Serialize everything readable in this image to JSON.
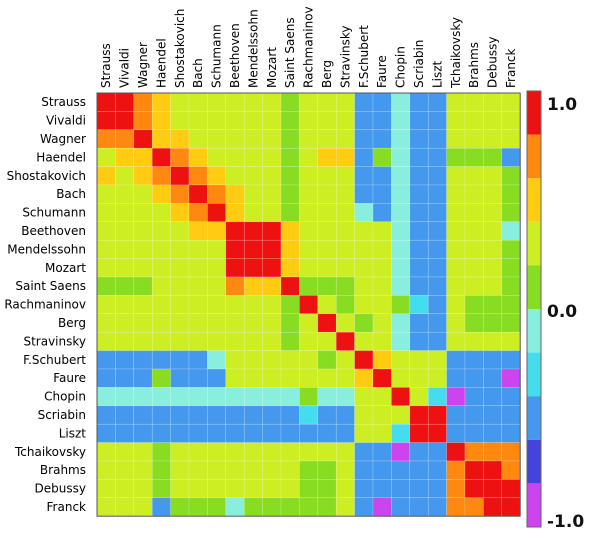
{
  "chart_data": {
    "type": "heatmap",
    "title": "",
    "xlabel": "",
    "ylabel": "",
    "composers": [
      "Strauss",
      "Vivaldi",
      "Wagner",
      "Haendel",
      "Shostakovich",
      "Bach",
      "Schumann",
      "Beethoven",
      "Mendelssohn",
      "Mozart",
      "Saint Saens",
      "Rachmaninov",
      "Berg",
      "Stravinsky",
      "F.Schubert",
      "Faure",
      "Chopin",
      "Scriabin",
      "Liszt",
      "Tchaikovsky",
      "Brahms",
      "Debussy",
      "Franck"
    ],
    "color_scale": {
      "min": -1.0,
      "max": 1.0,
      "labels": [
        "1.0",
        "0.0",
        "-1.0"
      ],
      "colors": [
        "#cc44ee",
        "#4444dd",
        "#4499ee",
        "#44ddee",
        "#88eedd",
        "#88dd22",
        "#ccee22",
        "#ffcc11",
        "#ff8811",
        "#ee1111"
      ]
    },
    "values": [
      [
        1.0,
        0.9,
        0.6,
        0.4,
        0.3,
        0.3,
        0.3,
        0.3,
        0.3,
        0.3,
        0.1,
        0.3,
        0.3,
        0.3,
        -0.5,
        -0.5,
        -0.1,
        -0.5,
        -0.5,
        0.2,
        0.2,
        0.2,
        0.2
      ],
      [
        0.9,
        1.0,
        0.7,
        0.4,
        0.3,
        0.3,
        0.3,
        0.3,
        0.3,
        0.3,
        0.1,
        0.3,
        0.3,
        0.3,
        -0.5,
        -0.5,
        -0.1,
        -0.5,
        -0.5,
        0.2,
        0.2,
        0.2,
        0.2
      ],
      [
        0.6,
        0.7,
        1.0,
        0.5,
        0.4,
        0.3,
        0.3,
        0.3,
        0.3,
        0.3,
        0.1,
        0.3,
        0.3,
        0.3,
        -0.5,
        -0.5,
        -0.1,
        -0.5,
        -0.5,
        0.2,
        0.2,
        0.2,
        0.2
      ],
      [
        0.3,
        0.4,
        0.5,
        1.0,
        0.6,
        0.4,
        0.3,
        0.3,
        0.3,
        0.3,
        0.1,
        0.2,
        0.4,
        0.4,
        -0.5,
        0.1,
        -0.2,
        -0.5,
        -0.5,
        0.1,
        0.0,
        0.0,
        -0.5
      ],
      [
        0.4,
        0.3,
        0.4,
        0.6,
        1.0,
        0.6,
        0.4,
        0.3,
        0.3,
        0.3,
        0.1,
        0.3,
        0.3,
        0.3,
        -0.5,
        -0.5,
        -0.1,
        -0.5,
        -0.5,
        0.2,
        0.2,
        0.2,
        0.0
      ],
      [
        0.3,
        0.3,
        0.3,
        0.4,
        0.6,
        1.0,
        0.7,
        0.4,
        0.3,
        0.3,
        0.1,
        0.3,
        0.3,
        0.3,
        -0.5,
        -0.5,
        -0.1,
        -0.6,
        -0.5,
        0.2,
        0.2,
        0.2,
        0.0
      ],
      [
        0.3,
        0.3,
        0.3,
        0.3,
        0.4,
        0.7,
        1.0,
        0.4,
        0.3,
        0.3,
        0.1,
        0.3,
        0.3,
        0.3,
        -0.1,
        -0.5,
        -0.1,
        -0.6,
        -0.5,
        0.2,
        0.2,
        0.2,
        0.0
      ],
      [
        0.3,
        0.3,
        0.3,
        0.3,
        0.3,
        0.4,
        0.4,
        1.0,
        0.9,
        0.8,
        0.5,
        0.3,
        0.3,
        0.3,
        0.3,
        0.3,
        -0.1,
        -0.5,
        -0.5,
        0.2,
        0.2,
        0.2,
        -0.1
      ],
      [
        0.3,
        0.3,
        0.3,
        0.3,
        0.3,
        0.3,
        0.3,
        0.9,
        1.0,
        0.8,
        0.4,
        0.3,
        0.3,
        0.3,
        0.3,
        0.3,
        -0.1,
        -0.5,
        -0.5,
        0.2,
        0.2,
        0.2,
        0.0
      ],
      [
        0.3,
        0.3,
        0.3,
        0.3,
        0.3,
        0.3,
        0.3,
        0.8,
        0.8,
        1.0,
        0.5,
        0.3,
        0.3,
        0.3,
        0.3,
        0.3,
        -0.1,
        -0.6,
        -0.5,
        0.2,
        0.2,
        0.2,
        0.0
      ],
      [
        0.1,
        0.1,
        0.1,
        0.3,
        0.3,
        0.3,
        0.3,
        0.7,
        0.5,
        0.5,
        1.0,
        0.1,
        0.1,
        0.1,
        0.3,
        0.3,
        -0.1,
        -0.5,
        -0.5,
        0.2,
        0.2,
        0.2,
        0.0
      ],
      [
        0.3,
        0.3,
        0.3,
        0.3,
        0.3,
        0.3,
        0.3,
        0.3,
        0.3,
        0.3,
        0.1,
        1.0,
        0.3,
        0.1,
        0.3,
        0.3,
        0.0,
        -0.3,
        -0.5,
        0.2,
        0.0,
        0.0,
        0.0
      ],
      [
        0.3,
        0.3,
        0.3,
        0.3,
        0.3,
        0.3,
        0.3,
        0.3,
        0.3,
        0.3,
        0.1,
        0.3,
        1.0,
        0.3,
        0.1,
        0.3,
        -0.1,
        -0.5,
        -0.5,
        0.2,
        0.0,
        0.0,
        0.0
      ],
      [
        0.3,
        0.3,
        0.3,
        0.3,
        0.3,
        0.3,
        0.3,
        0.3,
        0.3,
        0.3,
        0.1,
        0.3,
        0.3,
        1.0,
        0.3,
        0.3,
        -0.1,
        -0.5,
        -0.5,
        0.2,
        0.2,
        0.2,
        0.2
      ],
      [
        -0.5,
        -0.5,
        -0.5,
        -0.5,
        -0.5,
        -0.5,
        -0.1,
        0.3,
        0.3,
        0.3,
        0.3,
        0.3,
        0.1,
        0.3,
        1.0,
        0.4,
        0.2,
        0.3,
        0.3,
        -0.5,
        -0.5,
        -0.5,
        -0.5
      ],
      [
        -0.5,
        -0.5,
        -0.5,
        0.1,
        -0.5,
        -0.5,
        -0.5,
        0.3,
        0.3,
        0.3,
        0.3,
        0.3,
        0.3,
        0.3,
        0.4,
        1.0,
        0.3,
        0.2,
        0.2,
        -0.5,
        -0.6,
        -0.6,
        -0.8
      ],
      [
        -0.1,
        -0.1,
        -0.1,
        -0.2,
        -0.1,
        -0.1,
        -0.1,
        -0.1,
        -0.1,
        -0.1,
        -0.1,
        0.0,
        -0.1,
        -0.1,
        0.2,
        0.3,
        1.0,
        0.2,
        -0.3,
        -0.8,
        -0.5,
        -0.5,
        -0.5
      ],
      [
        -0.5,
        -0.5,
        -0.5,
        -0.5,
        -0.5,
        -0.6,
        -0.6,
        -0.5,
        -0.5,
        -0.6,
        -0.5,
        -0.3,
        -0.5,
        -0.5,
        0.3,
        0.2,
        0.2,
        1.0,
        0.9,
        -0.5,
        -0.5,
        -0.5,
        -0.5
      ],
      [
        -0.5,
        -0.5,
        -0.5,
        -0.5,
        -0.5,
        -0.5,
        -0.5,
        -0.5,
        -0.5,
        -0.5,
        -0.5,
        -0.5,
        -0.5,
        -0.5,
        0.3,
        0.2,
        -0.3,
        0.9,
        1.0,
        -0.5,
        -0.5,
        -0.5,
        -0.5
      ],
      [
        0.2,
        0.2,
        0.2,
        0.1,
        0.2,
        0.2,
        0.2,
        0.2,
        0.2,
        0.2,
        0.2,
        0.2,
        0.2,
        0.2,
        -0.5,
        -0.5,
        -0.8,
        -0.5,
        -0.5,
        1.0,
        0.7,
        0.7,
        0.6
      ],
      [
        0.2,
        0.2,
        0.2,
        0.0,
        0.2,
        0.2,
        0.2,
        0.2,
        0.2,
        0.2,
        0.2,
        0.0,
        0.0,
        0.2,
        -0.5,
        -0.6,
        -0.5,
        -0.5,
        -0.5,
        0.7,
        1.0,
        0.8,
        0.7
      ],
      [
        0.2,
        0.2,
        0.2,
        0.0,
        0.2,
        0.2,
        0.2,
        0.2,
        0.2,
        0.2,
        0.2,
        0.0,
        0.0,
        0.2,
        -0.5,
        -0.6,
        -0.5,
        -0.5,
        -0.5,
        0.7,
        0.8,
        1.0,
        0.8
      ],
      [
        0.2,
        0.2,
        0.2,
        -0.5,
        0.0,
        0.0,
        0.0,
        -0.1,
        0.0,
        0.0,
        0.0,
        0.0,
        0.0,
        0.2,
        -0.5,
        -0.8,
        -0.5,
        -0.5,
        -0.5,
        0.6,
        0.7,
        0.8,
        1.0
      ]
    ]
  }
}
